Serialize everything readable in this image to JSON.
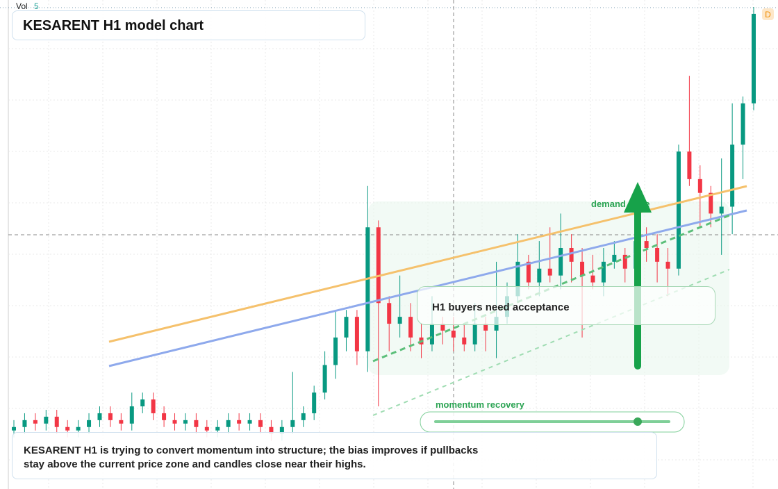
{
  "header": {
    "vol_label": "Vol",
    "vol_value": "5",
    "badge": "D"
  },
  "title": "KESARENT H1 model chart",
  "annotations": {
    "demand": "demand node",
    "acceptance": "H1 buyers need acceptance",
    "momentum": "momentum recovery",
    "summary": [
      "KESARENT H1 is trying to convert momentum into structure; the bias improves if pullbacks",
      "stay above the current price zone and candles close near their highs."
    ]
  },
  "chart_data": {
    "type": "candlestick",
    "up_color": "#089981",
    "down_color": "#f23645",
    "ylim": [
      0,
      70
    ],
    "open": [
      8.5,
      9,
      10,
      9.5,
      10.5,
      9,
      8.5,
      9,
      10,
      11,
      10,
      9.5,
      12,
      13,
      11,
      10,
      9.5,
      10,
      9,
      8.5,
      9,
      10,
      9.5,
      10,
      9,
      8,
      9,
      10,
      11,
      14,
      18,
      22,
      25,
      20,
      38,
      27,
      24,
      25,
      22,
      21,
      24,
      23,
      22,
      21,
      24,
      23,
      25,
      28,
      33,
      30,
      32,
      31,
      35,
      33,
      31,
      30,
      33,
      34,
      32,
      36,
      35,
      33,
      32,
      49,
      45,
      43,
      40,
      41,
      50,
      56
    ],
    "close": [
      9,
      10,
      9.5,
      10.5,
      9,
      8.5,
      9,
      10,
      11,
      10,
      9.5,
      12,
      13,
      11,
      10,
      9.5,
      10,
      9,
      8.5,
      9,
      10,
      9.5,
      10,
      9,
      8,
      9,
      10,
      11,
      14,
      18,
      22,
      25,
      20,
      38,
      27,
      24,
      25,
      22,
      21,
      24,
      23,
      22,
      21,
      24,
      23,
      25,
      28,
      33,
      30,
      32,
      31,
      35,
      33,
      31,
      30,
      33,
      34,
      32,
      36,
      35,
      33,
      32,
      49,
      45,
      43,
      40,
      41,
      50,
      56,
      69
    ],
    "high": [
      10,
      11,
      11,
      11.5,
      11.5,
      10,
      10,
      11,
      12,
      12,
      11,
      14,
      14,
      14,
      12,
      11,
      11,
      11,
      10,
      10,
      11,
      11,
      11,
      11,
      10,
      10,
      17,
      12,
      15,
      20,
      26,
      26,
      26,
      44,
      39,
      28,
      31,
      27,
      24,
      28,
      25,
      25,
      24,
      27,
      25,
      33,
      30,
      37,
      34,
      36,
      38,
      40,
      37,
      35,
      34,
      35,
      36,
      35,
      40,
      38,
      37,
      35,
      50,
      60,
      47,
      44,
      48,
      56,
      57,
      70
    ],
    "low": [
      7.5,
      8,
      8.5,
      8.5,
      8,
      7.5,
      7.5,
      8,
      9,
      9,
      8.5,
      8.5,
      11,
      10,
      9,
      8.5,
      8.5,
      8,
      7.5,
      7.5,
      8,
      8.5,
      8.5,
      8,
      7,
      7,
      8,
      9,
      10,
      13,
      16,
      20,
      18,
      17,
      12,
      20,
      22,
      20,
      19,
      20,
      21,
      20,
      20,
      20,
      20,
      19,
      24,
      27,
      29,
      28,
      30,
      29,
      30,
      22,
      29,
      28,
      32,
      30,
      31,
      33,
      30,
      28,
      31,
      44,
      38,
      38,
      34,
      37,
      45,
      55
    ]
  }
}
